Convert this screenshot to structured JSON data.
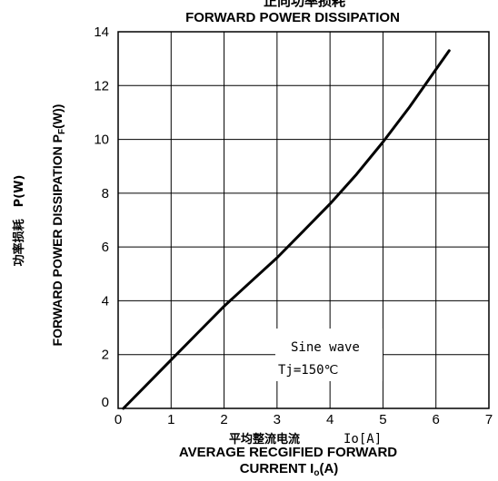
{
  "chart_data": {
    "type": "line",
    "title_top": "正向功率损耗",
    "title": "FORWARD POWER DISSIPATION",
    "ylabel_cn": "功率损耗　P(W)",
    "ylabel": "FORWARD POWER DISSIPATION P",
    "ylabel_sub": "F",
    "ylabel_tail": "(W))",
    "xlabel_cn": "平均整流电流",
    "xlabel_unit": "Io[A]",
    "xlabel_line1": "AVERAGE RECGIFIED FORWARD",
    "xlabel_line2_a": "CURRENT I",
    "xlabel_line2_sub": "o",
    "xlabel_line2_b": "(A)",
    "annotation_line1": "Sine wave",
    "annotation_line2": "Tj=150℃",
    "xlim": [
      0,
      7
    ],
    "ylim": [
      0,
      14
    ],
    "xticks": [
      "0",
      "1",
      "2",
      "3",
      "4",
      "5",
      "6",
      "7"
    ],
    "yticks": [
      "0",
      "2",
      "4",
      "6",
      "8",
      "10",
      "12",
      "14"
    ],
    "grid": true,
    "series": [
      {
        "x": [
          0.1,
          0.5,
          1.0,
          1.5,
          2.0,
          2.5,
          3.0,
          3.5,
          4.0,
          4.5,
          5.0,
          5.5,
          6.0,
          6.25
        ],
        "y": [
          0.0,
          0.8,
          1.8,
          2.8,
          3.8,
          4.7,
          5.6,
          6.6,
          7.6,
          8.7,
          9.9,
          11.2,
          12.6,
          13.3
        ]
      }
    ]
  }
}
